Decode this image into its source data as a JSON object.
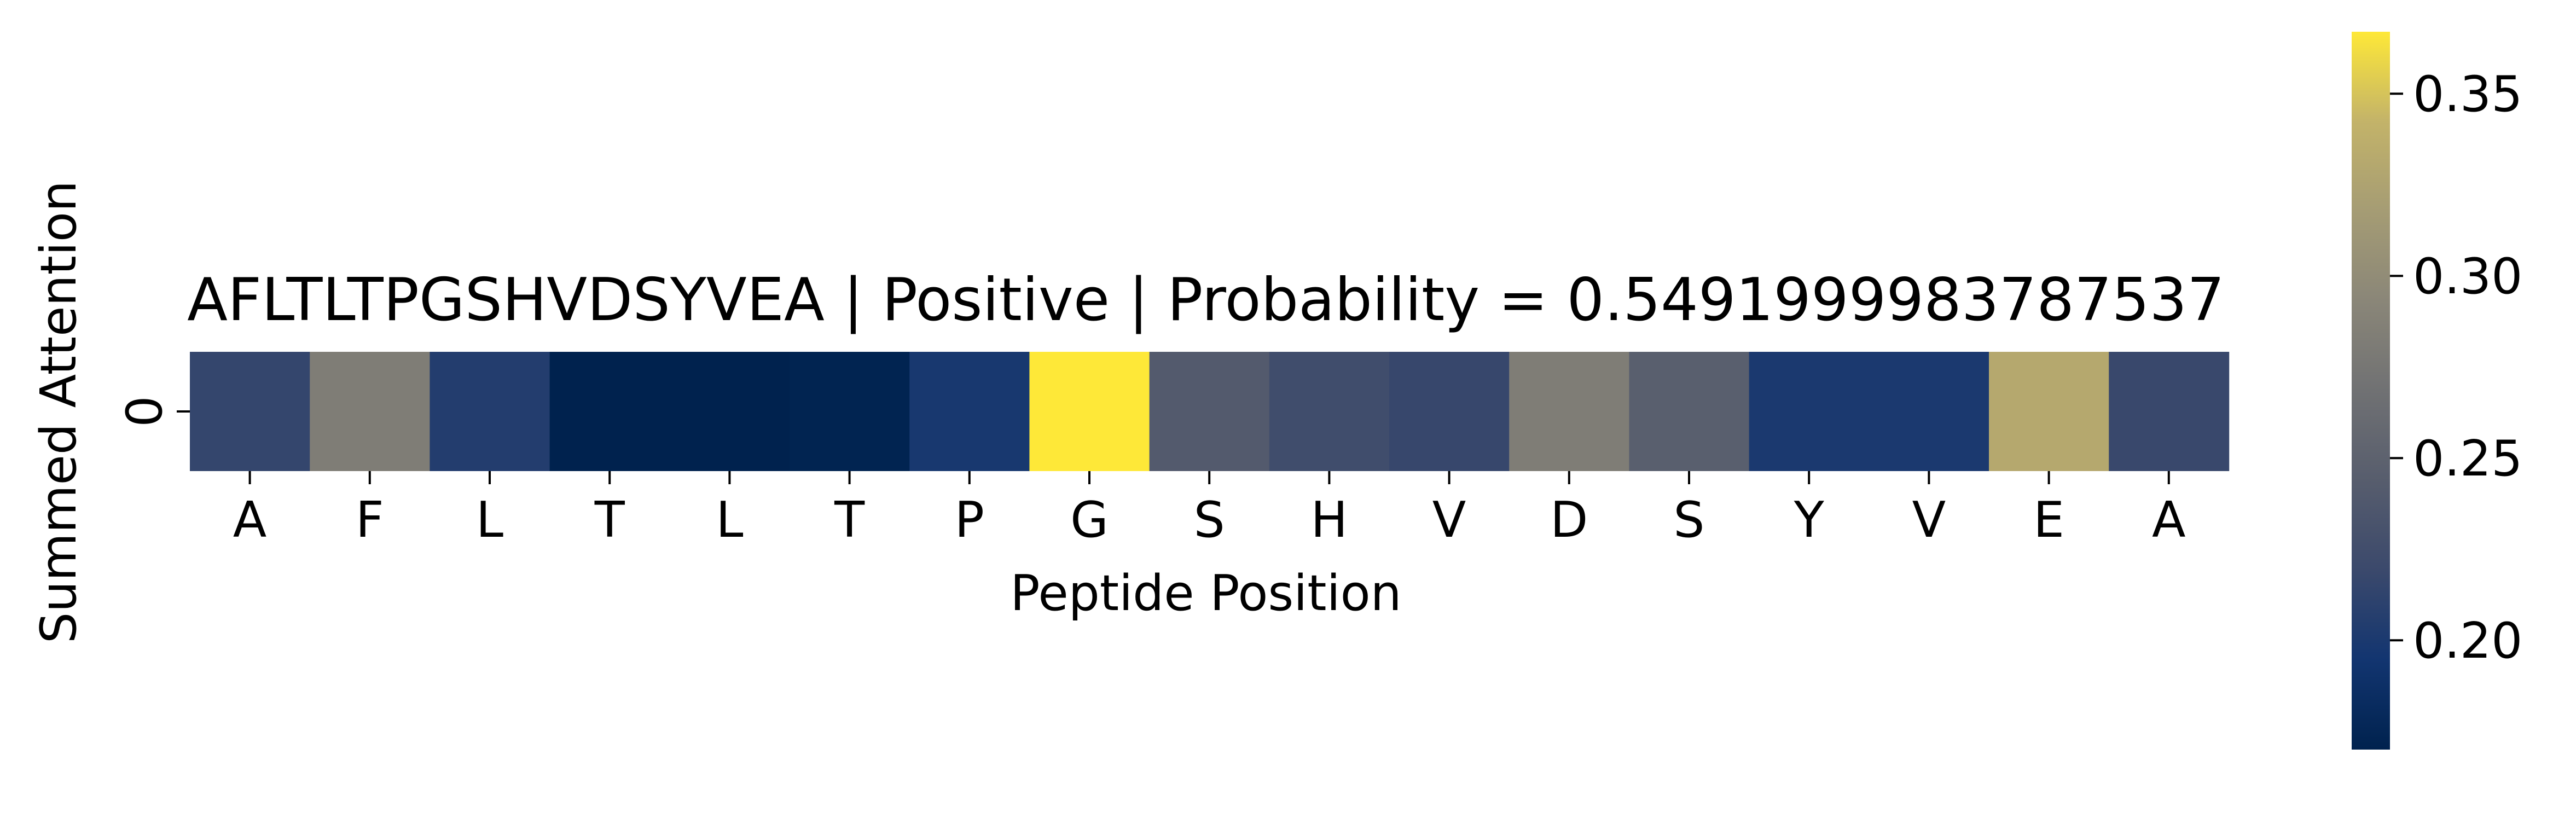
{
  "chart_data": {
    "type": "heatmap",
    "title": "AFLTLTPGSHVDSYVEA | Positive | Probability = 0.5491999983787537",
    "xlabel": "Peptide Position",
    "ylabel": "Summed Attention",
    "x_categories": [
      "A",
      "F",
      "L",
      "T",
      "L",
      "T",
      "P",
      "G",
      "S",
      "H",
      "V",
      "D",
      "S",
      "Y",
      "V",
      "E",
      "A"
    ],
    "y_categories": [
      "0"
    ],
    "values": [
      [
        0.215,
        0.283,
        0.205,
        0.17,
        0.17,
        0.172,
        0.198,
        0.367,
        0.24,
        0.224,
        0.217,
        0.283,
        0.246,
        0.2,
        0.2,
        0.331,
        0.218
      ]
    ],
    "colormap": "cividis",
    "colorbar": {
      "range": [
        0.17,
        0.367
      ],
      "ticks": [
        0.2,
        0.25,
        0.3,
        0.35
      ],
      "tick_labels": [
        "0.20",
        "0.25",
        "0.30",
        "0.35"
      ]
    }
  }
}
